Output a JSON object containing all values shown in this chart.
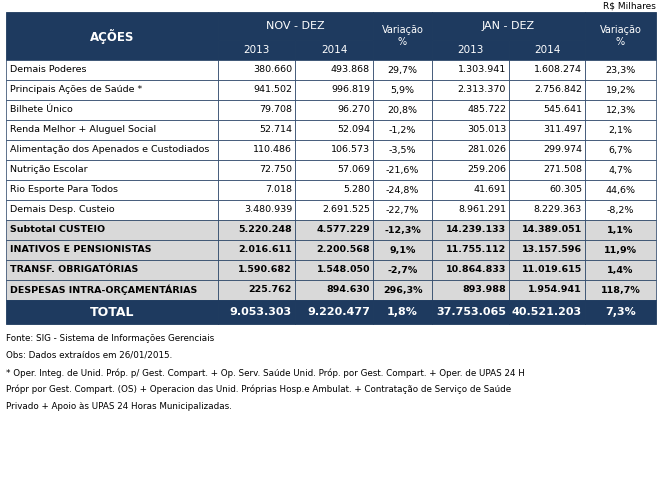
{
  "title_rs": "R$ Milhares",
  "dark_color": "#1e3a5f",
  "subtotal_bg": "#d9d9d9",
  "white": "#ffffff",
  "black": "#000000",
  "rows": [
    {
      "label": "Demais Poderes",
      "values": [
        "380.660",
        "493.868",
        "29,7%",
        "1.303.941",
        "1.608.274",
        "23,3%"
      ],
      "bold": false,
      "bg": "white"
    },
    {
      "label": "Principais Ações de Saúde *",
      "values": [
        "941.502",
        "996.819",
        "5,9%",
        "2.313.370",
        "2.756.842",
        "19,2%"
      ],
      "bold": false,
      "bg": "white"
    },
    {
      "label": "Bilhete Único",
      "values": [
        "79.708",
        "96.270",
        "20,8%",
        "485.722",
        "545.641",
        "12,3%"
      ],
      "bold": false,
      "bg": "white"
    },
    {
      "label": "Renda Melhor + Aluguel Social",
      "values": [
        "52.714",
        "52.094",
        "-1,2%",
        "305.013",
        "311.497",
        "2,1%"
      ],
      "bold": false,
      "bg": "white"
    },
    {
      "label": "Alimentação dos Apenados e Custodiados",
      "values": [
        "110.486",
        "106.573",
        "-3,5%",
        "281.026",
        "299.974",
        "6,7%"
      ],
      "bold": false,
      "bg": "white"
    },
    {
      "label": "Nutrição Escolar",
      "values": [
        "72.750",
        "57.069",
        "-21,6%",
        "259.206",
        "271.508",
        "4,7%"
      ],
      "bold": false,
      "bg": "white"
    },
    {
      "label": "Rio Esporte Para Todos",
      "values": [
        "7.018",
        "5.280",
        "-24,8%",
        "41.691",
        "60.305",
        "44,6%"
      ],
      "bold": false,
      "bg": "white"
    },
    {
      "label": "Demais Desp. Custeio",
      "values": [
        "3.480.939",
        "2.691.525",
        "-22,7%",
        "8.961.291",
        "8.229.363",
        "-8,2%"
      ],
      "bold": false,
      "bg": "white"
    },
    {
      "label": "Subtotal CUSTEIO",
      "values": [
        "5.220.248",
        "4.577.229",
        "-12,3%",
        "14.239.133",
        "14.389.051",
        "1,1%"
      ],
      "bold": true,
      "bg": "subtotal"
    },
    {
      "label": "INATIVOS E PENSIONISTAS",
      "values": [
        "2.016.611",
        "2.200.568",
        "9,1%",
        "11.755.112",
        "13.157.596",
        "11,9%"
      ],
      "bold": true,
      "bg": "subtotal"
    },
    {
      "label": "TRANSF. OBRIGATÓRIAS",
      "values": [
        "1.590.682",
        "1.548.050",
        "-2,7%",
        "10.864.833",
        "11.019.615",
        "1,4%"
      ],
      "bold": true,
      "bg": "subtotal"
    },
    {
      "label": "DESPESAS INTRA-ORÇAMENTÁRIAS",
      "values": [
        "225.762",
        "894.630",
        "296,3%",
        "893.988",
        "1.954.941",
        "118,7%"
      ],
      "bold": true,
      "bg": "subtotal"
    }
  ],
  "total_row": {
    "label": "TOTAL",
    "values": [
      "9.053.303",
      "9.220.477",
      "1,8%",
      "37.753.065",
      "40.521.203",
      "7,3%"
    ]
  },
  "footnotes": [
    "Fonte: SIG - Sistema de Informações Gerenciais",
    "Obs: Dados extraídos em 26/01/2015.",
    "* Oper. Integ. de Unid. Próp. p/ Gest. Compart. + Op. Serv. Saúde Unid. Próp. por Gest. Compart. + Oper. de UPAS 24 H",
    "Própr por Gest. Compart. (OS) + Operacion das Unid. Próprias Hosp.e Ambulat. + Contratação de Serviço de Saúde",
    "Privado + Apoio às UPAS 24 Horas Municipalizadas."
  ],
  "figsize": [
    6.62,
    4.83
  ],
  "dpi": 100
}
